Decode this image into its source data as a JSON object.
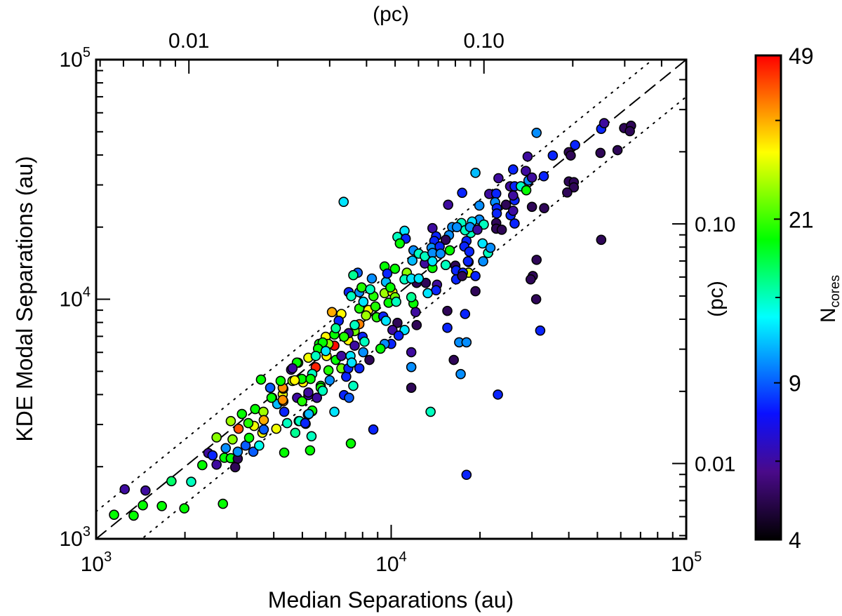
{
  "chart_data": {
    "type": "scatter",
    "title": "",
    "xlabel": "Median Separations (au)",
    "ylabel": "KDE Modal Separations (au)",
    "top_axis_label": "(pc)",
    "right_axis_label": "(pc)",
    "x_scale": "log",
    "y_scale": "log",
    "xlim": [
      1000,
      100000
    ],
    "ylim": [
      1000,
      100000
    ],
    "x_ticks": [
      {
        "base": "10",
        "exp": "3",
        "value": 1000
      },
      {
        "base": "10",
        "exp": "4",
        "value": 10000
      },
      {
        "base": "10",
        "exp": "5",
        "value": 100000
      }
    ],
    "y_ticks": [
      {
        "base": "10",
        "exp": "3",
        "value": 1000
      },
      {
        "base": "10",
        "exp": "4",
        "value": 10000
      },
      {
        "base": "10",
        "exp": "5",
        "value": 100000
      }
    ],
    "pc_ticks": [
      {
        "label": "0.01",
        "pc": 0.01
      },
      {
        "label": "0.10",
        "pc": 0.1
      }
    ],
    "au_per_pc": 206265,
    "grid": false,
    "reference_lines": [
      {
        "style": "dashed",
        "ratio": 1.0
      },
      {
        "style": "dotted",
        "ratio": 1.3
      },
      {
        "style": "dotted",
        "ratio": 0.7
      }
    ],
    "colorbar": {
      "label_main": "N",
      "label_sub": "cores",
      "scale": "log",
      "range": [
        4,
        49
      ],
      "ticks": [
        {
          "label": "49",
          "value": 49
        },
        {
          "label": "21",
          "value": 21
        },
        {
          "label": "9",
          "value": 9
        },
        {
          "label": "4",
          "value": 4
        }
      ],
      "colormap": [
        "#000000",
        "#4a0a8a",
        "#0a10ff",
        "#00ffff",
        "#00ff00",
        "#ffff00",
        "#ff8000",
        "#ff0000"
      ]
    },
    "points_fields": [
      "median_sep_au",
      "kde_modal_sep_au",
      "n_cores"
    ],
    "points": [
      [
        1250,
        1610,
        6
      ],
      [
        1150,
        1260,
        19
      ],
      [
        1440,
        1380,
        19
      ],
      [
        1800,
        1740,
        16
      ],
      [
        1990,
        1340,
        19
      ],
      [
        1470,
        1590,
        6
      ],
      [
        1340,
        1250,
        19
      ],
      [
        1670,
        1370,
        19
      ],
      [
        2100,
        1730,
        14
      ],
      [
        2690,
        1400,
        19
      ],
      [
        2290,
        2030,
        19
      ],
      [
        2560,
        2040,
        6
      ],
      [
        2400,
        2280,
        6
      ],
      [
        2480,
        2230,
        8
      ],
      [
        2720,
        2180,
        19
      ],
      [
        2860,
        2170,
        19
      ],
      [
        3020,
        2160,
        5
      ],
      [
        2960,
        1990,
        5
      ],
      [
        2750,
        2390,
        10
      ],
      [
        3020,
        2310,
        10
      ],
      [
        2560,
        2650,
        24
      ],
      [
        2900,
        2600,
        24
      ],
      [
        2860,
        3100,
        25
      ],
      [
        3040,
        2880,
        42
      ],
      [
        3120,
        3320,
        19
      ],
      [
        3460,
        3480,
        19
      ],
      [
        3690,
        3390,
        25
      ],
      [
        3700,
        3130,
        35
      ],
      [
        3430,
        2960,
        29
      ],
      [
        3280,
        3040,
        20
      ],
      [
        3660,
        2770,
        29
      ],
      [
        3210,
        2450,
        9
      ],
      [
        3410,
        2310,
        9
      ],
      [
        3570,
        2450,
        13
      ],
      [
        3300,
        2640,
        19
      ],
      [
        3700,
        2860,
        9
      ],
      [
        4080,
        2880,
        29
      ],
      [
        4340,
        2290,
        19
      ],
      [
        4730,
        2770,
        15
      ],
      [
        5310,
        2340,
        19
      ],
      [
        5370,
        2680,
        14
      ],
      [
        4860,
        3100,
        15
      ],
      [
        5130,
        3020,
        9
      ],
      [
        5220,
        3300,
        11
      ],
      [
        5400,
        3410,
        19
      ],
      [
        4340,
        3390,
        8
      ],
      [
        4440,
        3040,
        14
      ],
      [
        3620,
        4620,
        19
      ],
      [
        3890,
        4270,
        10
      ],
      [
        3950,
        3880,
        19
      ],
      [
        4110,
        3650,
        11
      ],
      [
        4310,
        3750,
        37
      ],
      [
        4290,
        4010,
        29
      ],
      [
        4310,
        4230,
        33
      ],
      [
        4630,
        4560,
        25
      ],
      [
        5030,
        4500,
        30
      ],
      [
        4800,
        3880,
        6
      ],
      [
        4990,
        3750,
        20
      ],
      [
        5240,
        3980,
        6
      ],
      [
        5600,
        3880,
        6
      ],
      [
        4580,
        5080,
        6
      ],
      [
        4840,
        5430,
        20
      ],
      [
        5240,
        5700,
        29
      ],
      [
        5550,
        5200,
        46
      ],
      [
        5770,
        4350,
        19
      ],
      [
        5400,
        4880,
        14
      ],
      [
        7700,
        12900,
        9
      ],
      [
        7440,
        12600,
        15
      ],
      [
        9500,
        13700,
        19
      ],
      [
        8600,
        12200,
        10
      ],
      [
        9600,
        11800,
        11
      ],
      [
        10300,
        13400,
        19
      ],
      [
        11300,
        12800,
        20
      ],
      [
        11800,
        14500,
        11
      ],
      [
        12400,
        12200,
        12
      ],
      [
        13000,
        14100,
        6
      ],
      [
        13800,
        13500,
        19
      ],
      [
        15300,
        13900,
        19
      ],
      [
        16600,
        13200,
        8
      ],
      [
        18300,
        12900,
        28
      ],
      [
        18300,
        14300,
        8
      ],
      [
        19300,
        10800,
        5
      ],
      [
        12200,
        11700,
        5
      ],
      [
        13100,
        11700,
        5
      ],
      [
        14300,
        11500,
        6
      ],
      [
        14200,
        10900,
        8
      ],
      [
        13300,
        10600,
        12
      ],
      [
        11900,
        9600,
        19
      ],
      [
        11700,
        10200,
        15
      ],
      [
        12100,
        8840,
        6
      ],
      [
        12200,
        7800,
        5
      ],
      [
        15500,
        8940,
        5
      ],
      [
        17800,
        8680,
        8
      ],
      [
        15500,
        7600,
        8
      ],
      [
        17000,
        6610,
        10
      ],
      [
        18000,
        6610,
        10
      ],
      [
        16300,
        5580,
        5
      ],
      [
        17200,
        4870,
        10
      ],
      [
        11700,
        6010,
        6
      ],
      [
        11700,
        5210,
        10
      ],
      [
        11700,
        4270,
        5
      ],
      [
        13600,
        3390,
        14
      ],
      [
        10500,
        7970,
        5
      ],
      [
        10100,
        7440,
        6
      ],
      [
        11100,
        7440,
        12
      ],
      [
        10600,
        7050,
        8
      ],
      [
        10000,
        6510,
        8
      ],
      [
        9500,
        6510,
        10
      ],
      [
        9200,
        6220,
        19
      ],
      [
        8440,
        5580,
        5
      ],
      [
        8040,
        6010,
        10
      ],
      [
        7800,
        5150,
        8
      ],
      [
        7440,
        4350,
        14
      ],
      [
        7040,
        4750,
        8
      ],
      [
        6920,
        3980,
        8
      ],
      [
        7200,
        3880,
        9
      ],
      [
        6420,
        3390,
        12
      ],
      [
        6190,
        4590,
        10
      ],
      [
        5400,
        3430,
        19
      ],
      [
        5260,
        3320,
        11
      ],
      [
        4890,
        3100,
        14
      ],
      [
        5110,
        3040,
        8
      ],
      [
        6300,
        8840,
        35
      ],
      [
        6780,
        8680,
        30
      ],
      [
        6640,
        8130,
        8
      ],
      [
        7800,
        7870,
        38
      ],
      [
        7520,
        7360,
        23
      ],
      [
        7160,
        6740,
        30
      ],
      [
        6420,
        6400,
        48
      ],
      [
        6000,
        6970,
        30
      ],
      [
        6420,
        7120,
        19
      ],
      [
        6490,
        7570,
        15
      ],
      [
        6130,
        6510,
        24
      ],
      [
        5700,
        6510,
        19
      ],
      [
        6040,
        5800,
        30
      ],
      [
        6490,
        5580,
        19
      ],
      [
        6780,
        5150,
        23
      ],
      [
        6130,
        5050,
        20
      ],
      [
        7160,
        5150,
        8
      ],
      [
        6780,
        5800,
        6
      ],
      [
        7280,
        5800,
        12
      ],
      [
        7350,
        5440,
        12
      ],
      [
        8000,
        6970,
        8
      ],
      [
        8120,
        6650,
        14
      ],
      [
        7520,
        6400,
        6
      ],
      [
        4790,
        5440,
        19
      ],
      [
        4630,
        5150,
        6
      ],
      [
        4980,
        4650,
        19
      ],
      [
        4710,
        4590,
        30
      ],
      [
        4290,
        4270,
        37
      ],
      [
        4290,
        3800,
        37
      ],
      [
        5770,
        4270,
        19
      ],
      [
        5860,
        4150,
        14
      ],
      [
        5600,
        3880,
        6
      ],
      [
        5240,
        4080,
        6
      ],
      [
        3930,
        3880,
        19
      ],
      [
        3890,
        4270,
        9
      ],
      [
        4220,
        4560,
        19
      ],
      [
        5330,
        4650,
        19
      ],
      [
        8370,
        9020,
        30
      ],
      [
        8220,
        8550,
        25
      ],
      [
        7800,
        9150,
        20
      ],
      [
        8840,
        9330,
        20
      ],
      [
        8710,
        10300,
        20
      ],
      [
        8930,
        8410,
        20
      ],
      [
        9400,
        8470,
        8
      ],
      [
        9600,
        8130,
        12
      ],
      [
        8050,
        9760,
        12
      ],
      [
        7800,
        10700,
        10
      ],
      [
        7940,
        11200,
        20
      ],
      [
        8490,
        11000,
        14
      ],
      [
        9500,
        10600,
        25
      ],
      [
        10100,
        10700,
        30
      ],
      [
        10300,
        10200,
        23
      ],
      [
        9800,
        9670,
        19
      ],
      [
        10400,
        9760,
        14
      ],
      [
        9940,
        11200,
        19
      ],
      [
        7180,
        10700,
        8
      ],
      [
        7320,
        10300,
        14
      ],
      [
        7520,
        7800,
        14
      ],
      [
        7180,
        7220,
        6
      ],
      [
        6920,
        6970,
        20
      ],
      [
        5860,
        6600,
        19
      ],
      [
        5650,
        6220,
        19
      ],
      [
        5550,
        5800,
        14
      ],
      [
        6000,
        6080,
        12
      ],
      [
        31100,
        49500,
        10
      ],
      [
        19300,
        33700,
        11
      ],
      [
        17400,
        27800,
        8
      ],
      [
        15600,
        24800,
        6
      ],
      [
        19900,
        24600,
        10
      ],
      [
        29000,
        39400,
        6
      ],
      [
        25900,
        34800,
        8
      ],
      [
        23100,
        32000,
        6
      ],
      [
        21500,
        27500,
        6
      ],
      [
        22700,
        27600,
        8
      ],
      [
        25300,
        29600,
        6
      ],
      [
        26200,
        29600,
        8
      ],
      [
        27500,
        29600,
        14
      ],
      [
        28700,
        28500,
        19
      ],
      [
        29200,
        31300,
        10
      ],
      [
        28600,
        34300,
        6
      ],
      [
        30000,
        32200,
        6
      ],
      [
        32900,
        32600,
        8
      ],
      [
        35300,
        39800,
        8
      ],
      [
        40000,
        41100,
        5
      ],
      [
        40600,
        39800,
        5
      ],
      [
        42000,
        44000,
        8
      ],
      [
        51500,
        51400,
        8
      ],
      [
        52700,
        54300,
        6
      ],
      [
        51200,
        40800,
        5
      ],
      [
        58500,
        41900,
        5
      ],
      [
        61600,
        51800,
        5
      ],
      [
        65000,
        53000,
        5
      ],
      [
        64400,
        50300,
        5
      ],
      [
        40000,
        31000,
        5
      ],
      [
        41600,
        30800,
        5
      ],
      [
        41600,
        29300,
        5
      ],
      [
        39500,
        27900,
        5
      ],
      [
        30000,
        24300,
        5
      ],
      [
        33000,
        24000,
        5
      ],
      [
        51500,
        17700,
        5
      ],
      [
        31100,
        14600,
        5
      ],
      [
        30200,
        12500,
        5
      ],
      [
        29700,
        12100,
        5
      ],
      [
        24500,
        24800,
        5
      ],
      [
        26200,
        25900,
        8
      ],
      [
        25900,
        27100,
        6
      ],
      [
        22500,
        25400,
        10
      ],
      [
        22800,
        24000,
        8
      ],
      [
        22800,
        22800,
        8
      ],
      [
        25400,
        22400,
        8
      ],
      [
        25900,
        23400,
        6
      ],
      [
        26200,
        20700,
        8
      ],
      [
        22700,
        20800,
        5
      ],
      [
        22700,
        19700,
        5
      ],
      [
        23700,
        19500,
        5
      ],
      [
        19900,
        21500,
        10
      ],
      [
        20600,
        20500,
        14
      ],
      [
        18800,
        21100,
        12
      ],
      [
        18600,
        18900,
        14
      ],
      [
        17300,
        20800,
        14
      ],
      [
        17800,
        19400,
        14
      ],
      [
        18500,
        20000,
        10
      ],
      [
        19600,
        19500,
        6
      ],
      [
        16100,
        20000,
        10
      ],
      [
        16700,
        20000,
        10
      ],
      [
        13800,
        19800,
        6
      ],
      [
        14200,
        18300,
        8
      ],
      [
        14000,
        17500,
        8
      ],
      [
        15700,
        18500,
        10
      ],
      [
        15300,
        17700,
        5
      ],
      [
        18000,
        17500,
        8
      ],
      [
        17700,
        16600,
        8
      ],
      [
        18400,
        15800,
        8
      ],
      [
        20400,
        17100,
        12
      ],
      [
        21300,
        15600,
        14
      ],
      [
        21700,
        16400,
        10
      ],
      [
        20500,
        14400,
        10
      ],
      [
        18200,
        14400,
        8
      ],
      [
        15800,
        16000,
        19
      ],
      [
        15300,
        13900,
        14
      ],
      [
        16500,
        13800,
        5
      ],
      [
        16600,
        13200,
        8
      ],
      [
        17500,
        12900,
        8
      ],
      [
        19300,
        12500,
        8
      ],
      [
        16600,
        12100,
        8
      ],
      [
        17400,
        12500,
        5
      ],
      [
        11100,
        19300,
        12
      ],
      [
        10500,
        18200,
        14
      ],
      [
        11200,
        17900,
        8
      ],
      [
        10700,
        17100,
        19
      ],
      [
        11900,
        16000,
        10
      ],
      [
        12400,
        15500,
        14
      ],
      [
        13000,
        15100,
        14
      ],
      [
        13700,
        16400,
        10
      ],
      [
        14600,
        16600,
        8
      ],
      [
        13800,
        15600,
        10
      ],
      [
        14700,
        15500,
        10
      ],
      [
        13800,
        14400,
        12
      ],
      [
        9700,
        12800,
        8
      ],
      [
        11300,
        12900,
        24
      ],
      [
        11100,
        12100,
        14
      ],
      [
        11700,
        12200,
        12
      ],
      [
        12400,
        12200,
        12
      ],
      [
        6900,
        25500,
        12
      ],
      [
        18000,
        1850,
        8
      ],
      [
        23000,
        4000,
        8
      ],
      [
        8700,
        2860,
        8
      ],
      [
        7300,
        2500,
        19
      ],
      [
        32000,
        7400,
        8
      ],
      [
        31000,
        10000,
        5
      ]
    ]
  }
}
